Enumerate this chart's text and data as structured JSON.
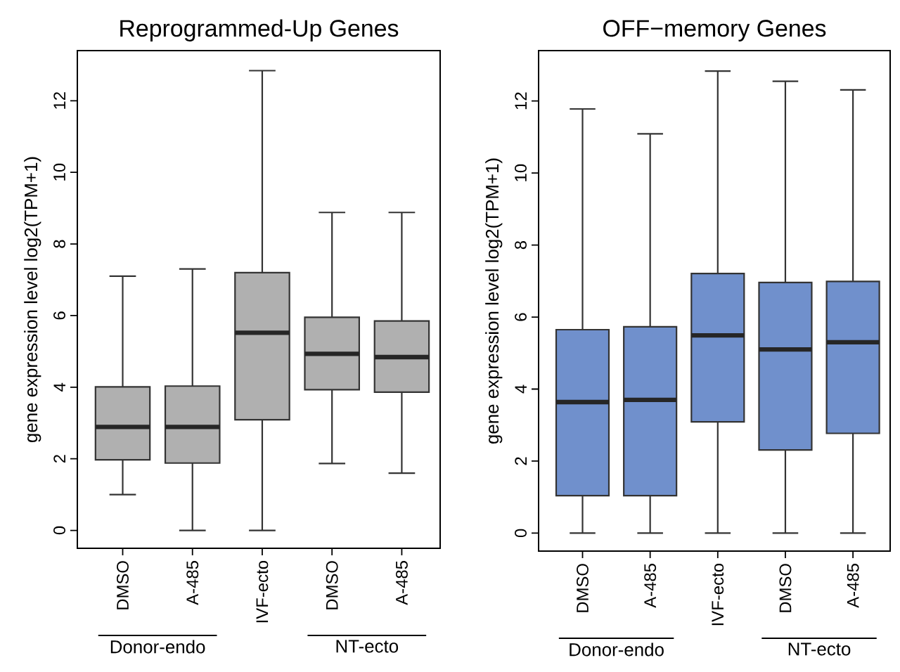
{
  "chart_data": [
    {
      "type": "box",
      "title": "Reprogrammed-Up Genes",
      "ylabel": "gene expression level log2(TPM+1)",
      "color": "#b0b0b0",
      "categories": [
        "DMSO",
        "A-485",
        "IVF-ecto",
        "DMSO",
        "A-485"
      ],
      "boxes": [
        {
          "low": 1.0,
          "q1": 1.97,
          "median": 2.89,
          "q3": 4.01,
          "high": 7.1
        },
        {
          "low": 0,
          "q1": 1.88,
          "median": 2.89,
          "q3": 4.03,
          "high": 7.3
        },
        {
          "low": 0,
          "q1": 3.09,
          "median": 5.52,
          "q3": 7.2,
          "high": 12.84
        },
        {
          "low": 1.87,
          "q1": 3.93,
          "median": 4.93,
          "q3": 5.95,
          "high": 8.88
        },
        {
          "low": 1.6,
          "q1": 3.86,
          "median": 4.84,
          "q3": 5.85,
          "high": 8.88
        }
      ],
      "ylim": [
        -0.5,
        13.4
      ],
      "yticks": [
        0,
        2,
        4,
        6,
        8,
        10,
        12
      ],
      "annotations": [
        "Donor-endo",
        "NT-ecto"
      ]
    },
    {
      "type": "box",
      "title": "OFF−memory Genes",
      "ylabel": "gene expression level log2(TPM+1)",
      "color": "#7090cc",
      "categories": [
        "DMSO",
        "A-485",
        "IVF-ecto",
        "DMSO",
        "A-485"
      ],
      "boxes": [
        {
          "low": 0,
          "q1": 1.04,
          "median": 3.64,
          "q3": 5.65,
          "high": 11.78
        },
        {
          "low": 0,
          "q1": 1.04,
          "median": 3.7,
          "q3": 5.73,
          "high": 11.09
        },
        {
          "low": 0,
          "q1": 3.09,
          "median": 5.49,
          "q3": 7.21,
          "high": 12.83
        },
        {
          "low": 0,
          "q1": 2.31,
          "median": 5.1,
          "q3": 6.96,
          "high": 12.55
        },
        {
          "low": 0,
          "q1": 2.77,
          "median": 5.3,
          "q3": 6.99,
          "high": 12.31
        }
      ],
      "ylim": [
        -0.5,
        13.4
      ],
      "yticks": [
        0,
        2,
        4,
        6,
        8,
        10,
        12
      ],
      "annotations": [
        "Donor-endo",
        "NT-ecto"
      ]
    }
  ]
}
